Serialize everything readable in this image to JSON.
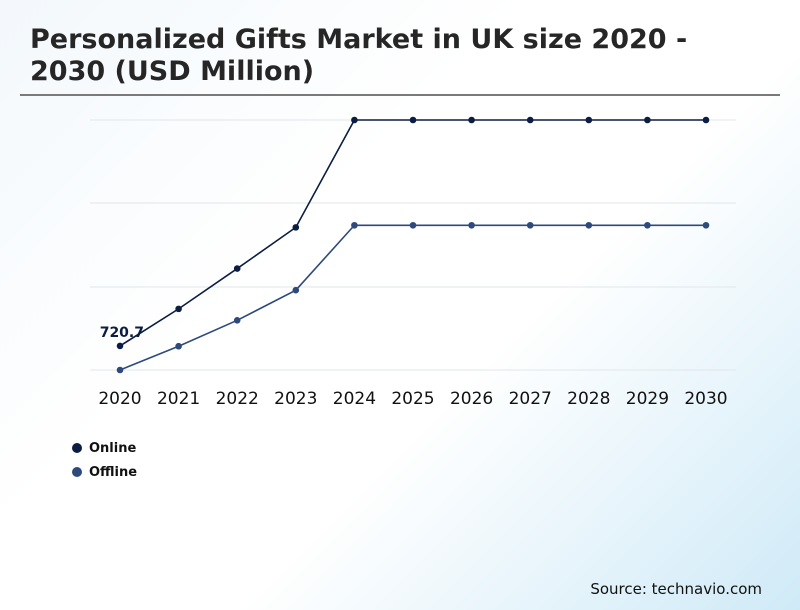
{
  "title": "Personalized Gifts Market in UK size 2020 - 2030 (USD Million)",
  "source": "Source: technavio.com",
  "chart_data": {
    "type": "line",
    "x": [
      "2020",
      "2021",
      "2022",
      "2023",
      "2024",
      "2025",
      "2026",
      "2027",
      "2028",
      "2029",
      "2030"
    ],
    "series": [
      {
        "name": "Online",
        "color": "#0b1d42",
        "values": [
          720.7,
          808,
          903,
          1000,
          1253,
          1253,
          1253,
          1253,
          1253,
          1253,
          1253
        ]
      },
      {
        "name": "Offline",
        "color": "#2e4a7d",
        "values": [
          664,
          720,
          781,
          852,
          1005,
          1005,
          1005,
          1005,
          1005,
          1005,
          1005
        ]
      }
    ],
    "annotations": [
      {
        "series": 0,
        "index": 0,
        "text": "720.7"
      }
    ],
    "ylim": [
      664,
      1253
    ],
    "grid": true,
    "legend_position": "bottom-left"
  }
}
